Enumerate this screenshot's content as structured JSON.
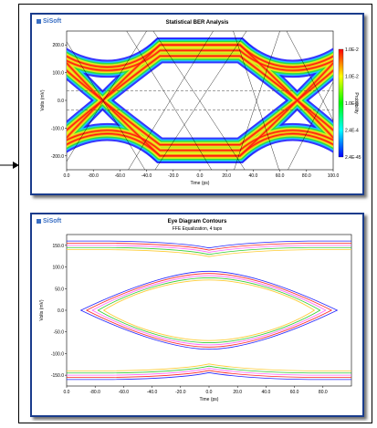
{
  "arrow": {
    "color": "#000000"
  },
  "brand": {
    "logo_text": "SiSoft",
    "color": "#3a6fc4"
  },
  "charts": {
    "top": {
      "title": "Statistical BER Analysis",
      "xlabel": "Time (ps)",
      "ylabel": "Volts (mV)",
      "colorbar_label": "Probability",
      "x_ticks": [
        "0.0",
        "-80.0",
        "-60.0",
        "-40.0",
        "-20.0",
        "0.0",
        "20.0",
        "40.0",
        "60.0",
        "80.0",
        "100.0"
      ],
      "y_ticks": [
        "200.0",
        "100.0",
        "0.0",
        "-100.0",
        "-200.0"
      ],
      "cbar_ticks": [
        "1.0E-2",
        "1.0E-2",
        "1.0E-3",
        "2.4E-4",
        "2.4E-45"
      ]
    },
    "bottom": {
      "title": "Eye Diagram Contours",
      "subtitle": "FFE Equalization, 4 taps",
      "xlabel": "Time (ps)",
      "ylabel": "Volts (mV)",
      "x_ticks": [
        "0.0",
        "-80.0",
        "-60.0",
        "-40.0",
        "-20.0",
        "0.0",
        "20.0",
        "40.0",
        "60.0",
        "80.0"
      ],
      "y_ticks": [
        "150.0",
        "100.0",
        "50.0",
        "0.0",
        "-50.0",
        "-100.0",
        "-150.0"
      ]
    }
  },
  "chart_data": [
    {
      "type": "heatmap",
      "title": "Statistical BER Analysis",
      "xlabel": "Time (ps)",
      "ylabel": "Volts (mV)",
      "xlim": [
        -100,
        100
      ],
      "ylim": [
        -250,
        250
      ],
      "levels_mV": [
        200,
        -200
      ],
      "eye_crossings_ps": [
        -85,
        85
      ],
      "colorbar": {
        "label": "Probability",
        "ticks": [
          "1.0E-2",
          "1.0E-2",
          "1.0E-3",
          "2.4E-4",
          "2.4E-45"
        ]
      }
    },
    {
      "type": "line",
      "title": "Eye Diagram Contours",
      "subtitle": "FFE Equalization, 4 taps",
      "xlabel": "Time (ps)",
      "ylabel": "Volts (mV)",
      "xlim": [
        -100,
        100
      ],
      "ylim": [
        -175,
        175
      ],
      "series": [
        {
          "color": "#2323ff",
          "eye_height_mV": 90,
          "eye_width_ps": [
            -90,
            90
          ],
          "upper_rail_mV": 160,
          "lower_rail_mV": -160
        },
        {
          "color": "#ff2323",
          "eye_height_mV": 85,
          "eye_width_ps": [
            -86,
            86
          ],
          "upper_rail_mV": 155,
          "lower_rail_mV": -155
        },
        {
          "color": "#ff66ff",
          "eye_height_mV": 80,
          "eye_width_ps": [
            -82,
            82
          ],
          "upper_rail_mV": 150,
          "lower_rail_mV": -150
        },
        {
          "color": "#33cc33",
          "eye_height_mV": 75,
          "eye_width_ps": [
            -78,
            78
          ],
          "upper_rail_mV": 145,
          "lower_rail_mV": -145
        },
        {
          "color": "#ffcc33",
          "eye_height_mV": 70,
          "eye_width_ps": [
            -74,
            74
          ],
          "upper_rail_mV": 140,
          "lower_rail_mV": -140
        }
      ]
    }
  ]
}
